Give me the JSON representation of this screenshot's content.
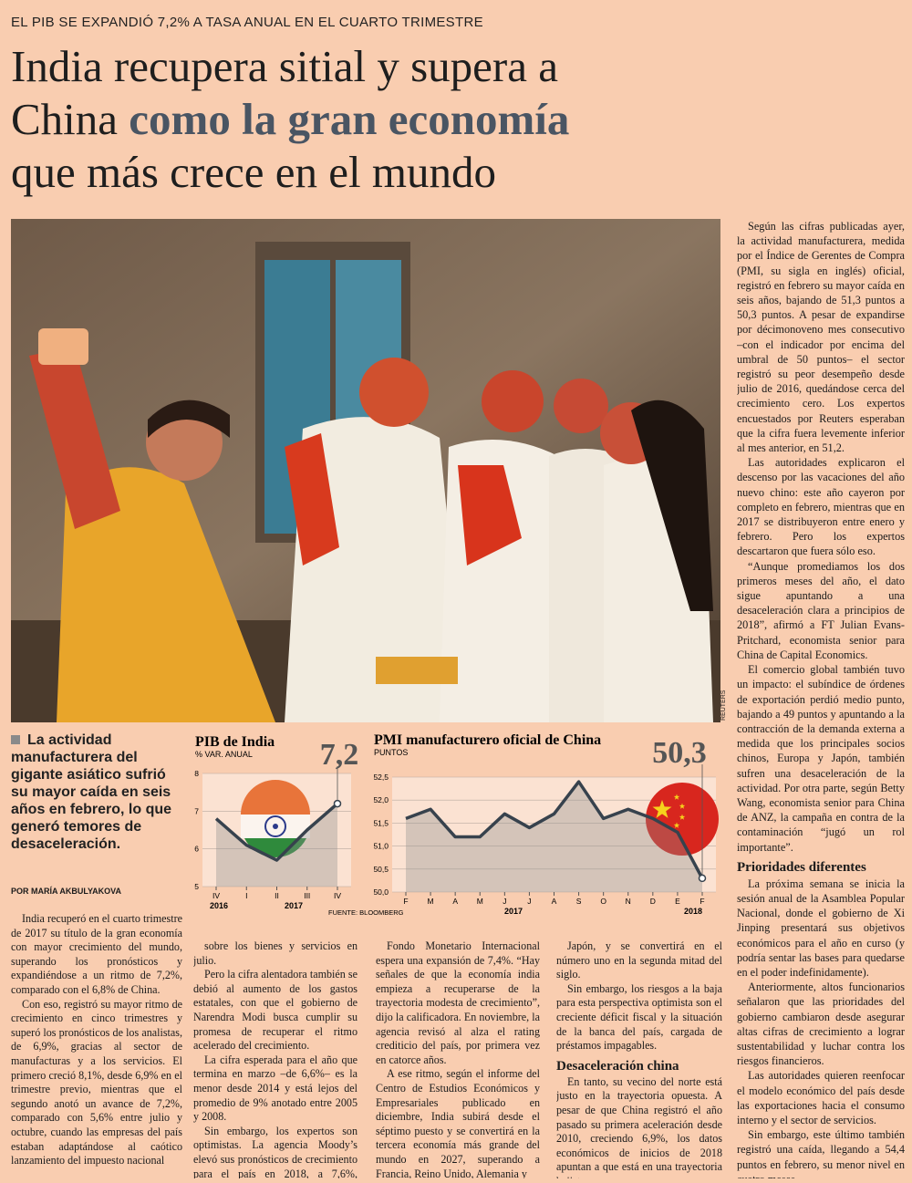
{
  "kicker": "EL PIB SE EXPANDIÓ 7,2% A TASA ANUAL EN EL CUARTO TRIMESTRE",
  "headline": {
    "line1": "India recupera sitial y supera a",
    "line2_start": "China",
    "highlight": "como la gran economía",
    "line3": "que más crece en el mundo"
  },
  "photo_credit": "REUTERS",
  "deck": "La actividad manufacturera del gigante asiático sufrió su mayor caída en seis años en febrero, lo que generó temores de desaceleración.",
  "byline": "POR MARÍA AKBULYAKOVA",
  "columns": [
    {
      "paragraphs": [
        "India recuperó en el cuarto trimestre de 2017 su título de la gran economía con mayor crecimiento del mundo, superando los pronósticos y expandiéndose a un ritmo de 7,2%, comparado con el 6,8% de China.",
        "Con eso, registró su mayor ritmo de crecimiento en cinco trimestres y superó los pronósticos de los analistas, de 6,9%, gracias al sector de manufacturas y a los servicios. El primero creció 8,1%, desde 6,9% en el trimestre previo, mientras que el segundo anotó un avance de 7,2%, comparado con 5,6% entre julio y octubre, cuando las empresas del país estaban adaptándose al caótico lanzamiento del impuesto nacional"
      ]
    },
    {
      "paragraphs": [
        "sobre los bienes y servicios en julio.",
        "Pero la cifra alentadora también se debió al aumento de los gastos estatales, con que el gobierno de Narendra Modi busca cumplir su promesa de recuperar el ritmo acelerado del crecimiento.",
        "La cifra esperada para el año que termina en marzo –de 6,6%– es la menor desde 2014 y está lejos del promedio de 9% anotado entre 2005 y 2008.",
        "Sin embargo, los expertos son optimistas. La agencia Moody’s elevó sus pronósticos de crecimiento para el país en 2018, a 7,6%, mientras que el"
      ]
    },
    {
      "paragraphs": [
        "Fondo Monetario Internacional espera una expansión de 7,4%. “Hay señales de que la economía india empieza a recuperarse de la trayectoria modesta de crecimiento”, dijo la calificadora. En noviembre, la agencia revisó al alza el rating crediticio del país, por primera vez en catorce años.",
        "A ese ritmo, según el informe del Centro de Estudios Económicos y Empresariales publicado en diciembre, India subirá desde el séptimo puesto y se convertirá en la tercera economía más grande del mundo en 2027, superando a Francia, Reino Unido, Alemania y"
      ]
    },
    {
      "paragraphs": [
        "Japón, y se convertirá en el número uno en la segunda mitad del siglo.",
        "Sin embargo, los riesgos a la baja para esta perspectiva optimista son el creciente déficit fiscal y la situación de la banca del país, cargada de préstamos impagables."
      ],
      "subhead": "Desaceleración china",
      "paragraphs_after": [
        "En tanto, su vecino del norte está justo en la trayectoria opuesta. A pesar de que China registró el año pasado su primera aceleración desde 2010, creciendo 6,9%, los datos económicos de inicios de 2018 apuntan a que está en una trayectoria bajista."
      ]
    },
    {
      "paragraphs": [
        "Según las cifras publicadas ayer, la actividad manufacturera, medida por el Índice de Gerentes de Compra (PMI, su sigla en inglés) oficial, registró en febrero su mayor caída en seis años, bajando de 51,3 puntos a 50,3 puntos. A pesar de expandirse por décimonoveno mes consecutivo –con el indicador por encima del umbral de 50 puntos– el sector registró su peor desempeño desde julio de 2016, quedándose cerca del crecimiento cero. Los expertos encuestados por Reuters esperaban que la cifra fuera levemente inferior al mes anterior, en 51,2.",
        "Las autoridades explicaron el descenso por las vacaciones del año nuevo chino: este año cayeron por completo en febrero, mientras que en 2017 se distribuyeron entre enero y febrero. Pero los expertos descartaron que fuera sólo eso.",
        "“Aunque promediamos los dos primeros meses del año, el dato sigue apuntando a una desaceleración clara a principios de 2018”, afirmó a FT Julian Evans-Pritchard, economista senior para China de Capital Economics.",
        "El comercio global también tuvo un impacto: el subíndice de órdenes de exportación perdió medio punto, bajando a 49 puntos y apuntando a la contracción de la demanda externa a medida que los principales socios chinos, Europa y Japón, también sufren una desaceleración de la actividad. Por otra parte, según Betty Wang, economista senior para China de ANZ, la campaña en contra de la contaminación “jugó un rol importante”."
      ],
      "subhead": "Prioridades diferentes",
      "paragraphs_after": [
        "La próxima semana se inicia la sesión anual de la Asamblea Popular Nacional, donde el gobierno de Xi Jinping presentará sus objetivos económicos para el año en curso (y podría sentar las bases para quedarse en el poder indefinidamente).",
        "Anteriormente, altos funcionarios señalaron que las prioridades del gobierno cambiaron desde asegurar altas cifras de crecimiento a lograr sustentabilidad y luchar contra los riesgos financieros.",
        "Las autoridades quieren reenfocar el modelo económico del país desde las exportaciones hacia el consumo interno y el sector de servicios.",
        "Sin embargo, este último también registró una caída, llegando a 54,4 puntos en febrero, su menor nivel en cuatro meses."
      ]
    }
  ],
  "chart_data": [
    {
      "type": "line",
      "title": "PIB de India",
      "subtitle": "% VAR. ANUAL",
      "categories": [
        "IV",
        "I",
        "II",
        "III",
        "IV"
      ],
      "values": [
        6.8,
        6.1,
        5.7,
        6.5,
        7.2
      ],
      "value_labels": [
        null,
        null,
        null,
        null,
        "7,2"
      ],
      "year_labels": [
        "2016",
        "2017"
      ],
      "ylim": [
        5,
        8
      ],
      "yticks": [
        5,
        6,
        7,
        8
      ],
      "grid": true,
      "color": "#37424d",
      "source": "FUENTE: BLOOMBERG"
    },
    {
      "type": "line",
      "title": "PMI manufacturero oficial de China",
      "subtitle": "PUNTOS",
      "categories": [
        "F",
        "M",
        "A",
        "M",
        "J",
        "J",
        "A",
        "S",
        "O",
        "N",
        "D",
        "E",
        "F"
      ],
      "values": [
        51.6,
        51.8,
        51.2,
        51.2,
        51.7,
        51.4,
        51.7,
        52.4,
        51.6,
        51.8,
        51.6,
        51.3,
        50.3
      ],
      "value_labels": [
        null,
        null,
        null,
        null,
        null,
        null,
        null,
        null,
        null,
        null,
        null,
        null,
        "50,3"
      ],
      "year_labels": [
        "2017",
        "2018"
      ],
      "ylim": [
        50,
        52.5
      ],
      "yticks": [
        {
          "value": 50,
          "label": "50,0"
        },
        {
          "value": 50.5,
          "label": "50,5"
        },
        {
          "value": 51,
          "label": "51,0"
        },
        {
          "value": 51.5,
          "label": "51,5"
        },
        {
          "value": 52,
          "label": "52,0"
        },
        {
          "value": 52.5,
          "label": "52,5"
        }
      ],
      "grid": true,
      "color": "#37424d"
    }
  ]
}
